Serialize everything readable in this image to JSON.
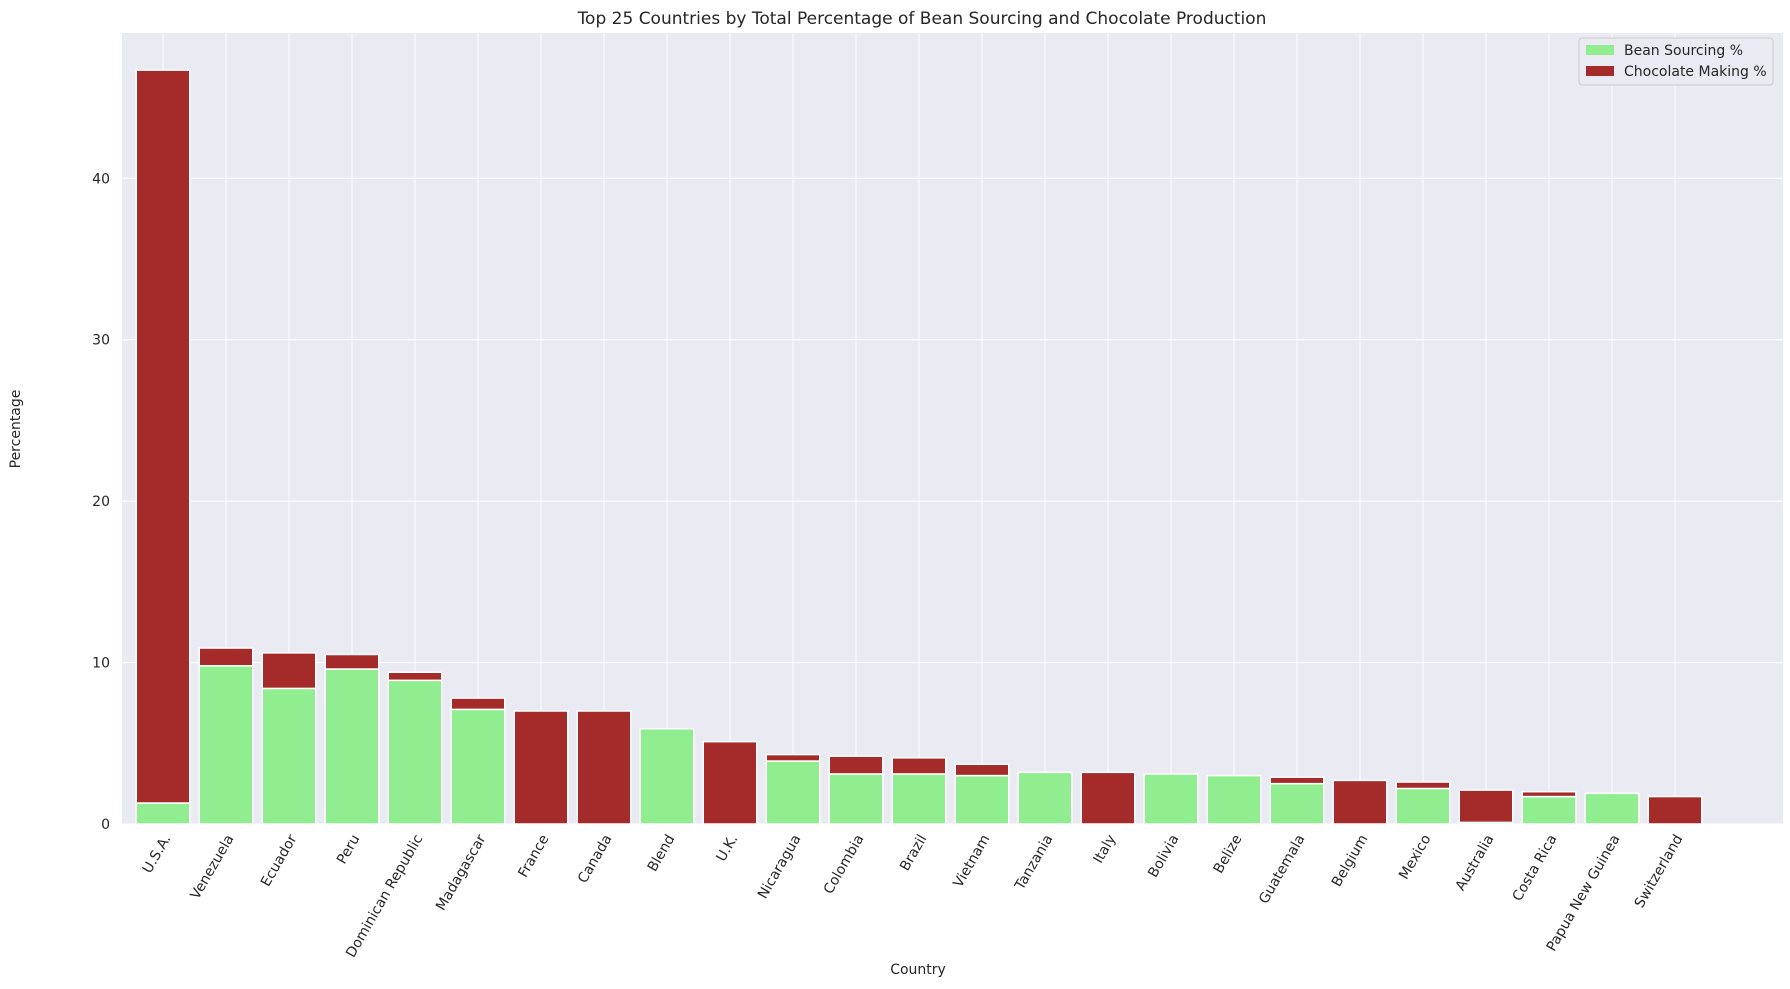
{
  "chart_data": {
    "type": "bar",
    "stacked": true,
    "title": "Top 25 Countries by Total Percentage of Bean Sourcing and Chocolate Production",
    "xlabel": "Country",
    "ylabel": "Percentage",
    "ylim": [
      0,
      49
    ],
    "yticks": [
      0,
      10,
      20,
      30,
      40
    ],
    "grid": true,
    "legend_position": "top-right",
    "categories": [
      "U.S.A.",
      "Venezuela",
      "Ecuador",
      "Peru",
      "Dominican Republic",
      "Madagascar",
      "France",
      "Canada",
      "Blend",
      "U.K.",
      "Nicaragua",
      "Colombia",
      "Brazil",
      "Vietnam",
      "Tanzania",
      "Italy",
      "Bolivia",
      "Belize",
      "Guatemala",
      "Belgium",
      "Mexico",
      "Australia",
      "Costa Rica",
      "Papua New Guinea",
      "Switzerland"
    ],
    "series": [
      {
        "name": "Bean Sourcing %",
        "color": "#90ee90",
        "values": [
          1.3,
          9.8,
          8.4,
          9.6,
          8.9,
          7.1,
          0,
          0,
          5.9,
          0,
          3.9,
          3.1,
          3.1,
          3.0,
          3.2,
          0,
          3.1,
          3.0,
          2.5,
          0,
          2.2,
          0.1,
          1.7,
          1.9,
          0
        ]
      },
      {
        "name": "Chocolate Making %",
        "color": "#a52a2a",
        "values": [
          45.4,
          1.1,
          2.2,
          0.9,
          0.5,
          0.7,
          7.0,
          7.0,
          0,
          5.1,
          0.4,
          1.1,
          1.0,
          0.7,
          0,
          3.2,
          0,
          0,
          0.4,
          2.7,
          0.4,
          2.0,
          0.3,
          0,
          1.7
        ]
      }
    ]
  }
}
